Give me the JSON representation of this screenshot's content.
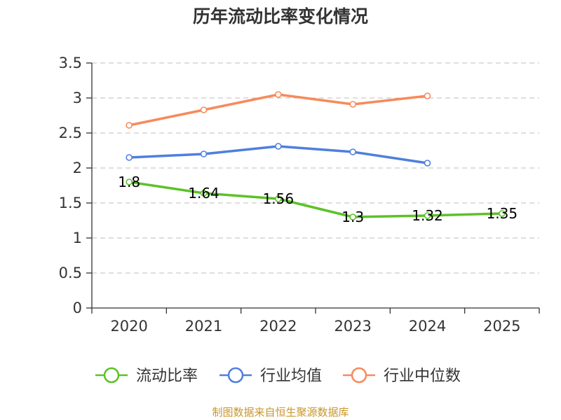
{
  "chart_data": {
    "type": "line",
    "title": "历年流动比率变化情况",
    "categories": [
      "2020",
      "2021",
      "2022",
      "2023",
      "2024",
      "2025"
    ],
    "y_ticks": [
      "0",
      "0.5",
      "1",
      "1.5",
      "2",
      "2.5",
      "3",
      "3.5"
    ],
    "ylim": [
      0,
      3.5
    ],
    "grid": true,
    "legend_position": "bottom",
    "series": [
      {
        "name": "流动比率",
        "color": "#5cc228",
        "values": [
          1.8,
          1.64,
          1.56,
          1.3,
          1.32,
          1.35
        ],
        "labels": [
          "1.8",
          "1.64",
          "1.56",
          "1.3",
          "1.32",
          "1.35"
        ],
        "show_labels": true
      },
      {
        "name": "行业均值",
        "color": "#4f7fdd",
        "values": [
          2.15,
          2.2,
          2.31,
          2.23,
          2.07,
          null
        ],
        "show_labels": false
      },
      {
        "name": "行业中位数",
        "color": "#f78a5a",
        "values": [
          2.61,
          2.83,
          3.05,
          2.91,
          3.03,
          null
        ],
        "show_labels": false
      }
    ],
    "source_note": "制图数据来自恒生聚源数据库"
  }
}
